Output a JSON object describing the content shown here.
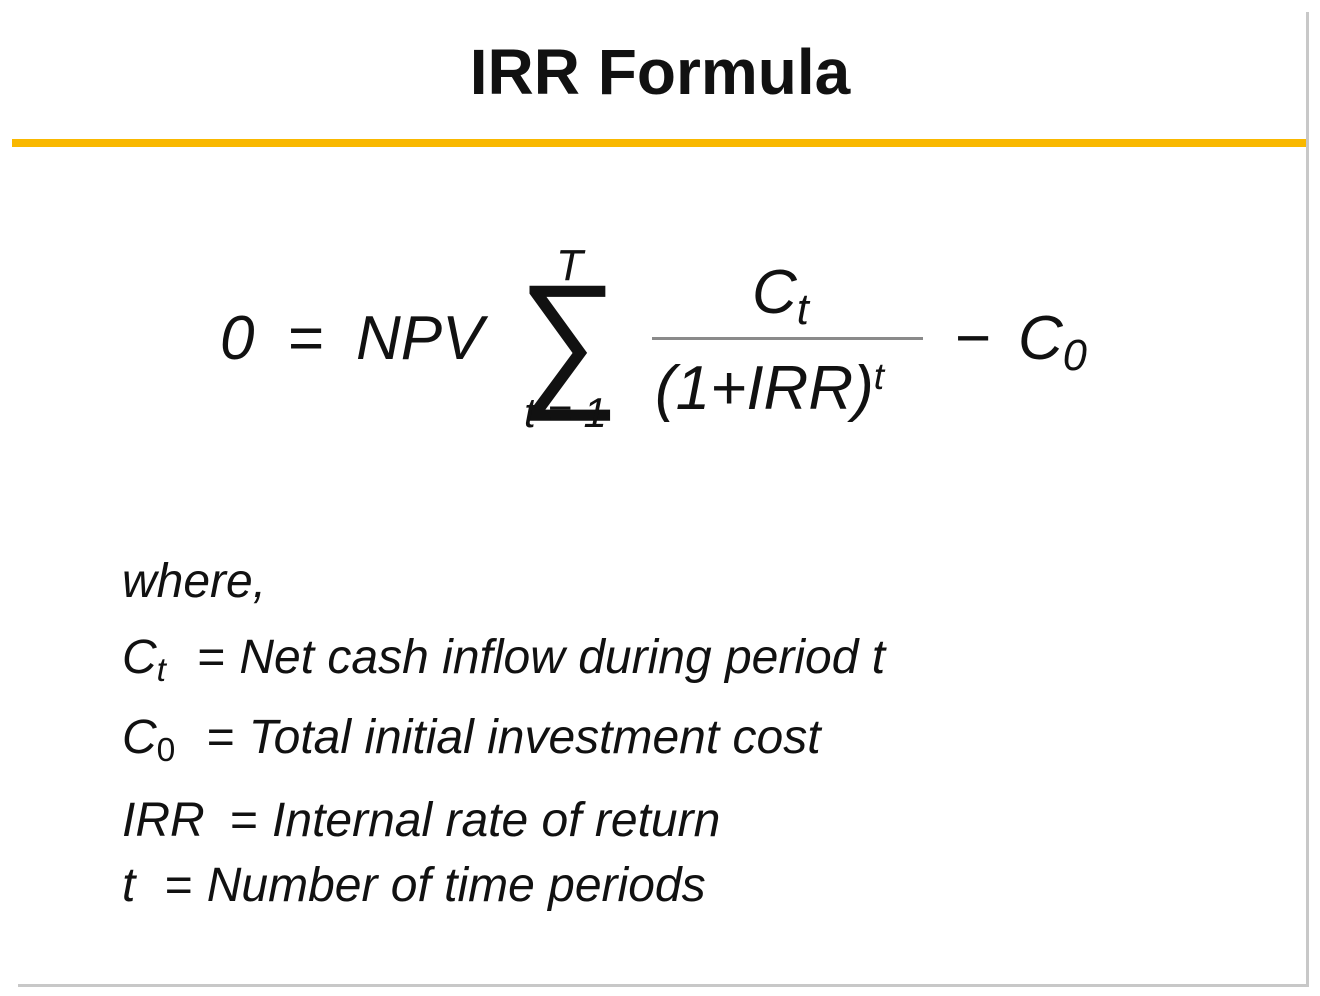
{
  "title": "IRR Formula",
  "colors": {
    "accent_rule": "#F9B800",
    "border": "#c8c8c8"
  },
  "formula": {
    "lhs": "0",
    "equals": "=",
    "npv": "NPV",
    "sum_symbol": "∑",
    "upper_limit": "T",
    "lower_limit": "t = 1",
    "numerator_base": "C",
    "numerator_sub": "t",
    "denominator_base": "(1+IRR)",
    "denominator_sup": "t",
    "minus": "−",
    "c0_base": "C",
    "c0_sub": "0"
  },
  "definitions": {
    "intro": "where,",
    "items": [
      {
        "symbol": "C",
        "sub": "t",
        "eq": "=",
        "text": "Net cash inflow during period t"
      },
      {
        "symbol": "C",
        "sub": "0",
        "eq": "=",
        "text": "Total initial investment cost"
      },
      {
        "symbol": "IRR",
        "sub": "",
        "eq": "=",
        "text": "Internal rate of return"
      },
      {
        "symbol": "t",
        "sub": "",
        "eq": "=",
        "text": "Number of time periods"
      }
    ]
  }
}
